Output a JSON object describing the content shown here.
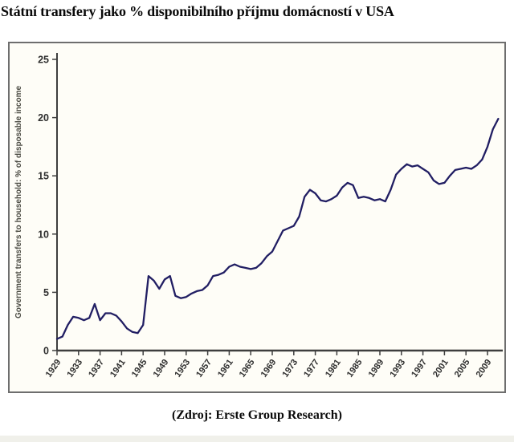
{
  "title": "Státní transfery jako % disponibilního příjmu domácností v USA",
  "source": {
    "label": "(Zdroj: Erste Group Research)"
  },
  "colors": {
    "line": "#211e63",
    "axis": "#3e3e3e",
    "panel_border": "#6e6e6e",
    "panel_bg": "#fefdf7",
    "tick_text": "#2e2e2e",
    "axis_title_text": "#4c4c44"
  },
  "chart_data": {
    "type": "line",
    "title": "Státní transfery jako % disponibilního příjmu domácností v USA",
    "xlabel": "",
    "ylabel": "Government transfers to household: % of disposable income",
    "ylim": [
      0,
      25
    ],
    "yticks": [
      0,
      5,
      10,
      15,
      20,
      25
    ],
    "xticks": [
      1929,
      1933,
      1937,
      1941,
      1945,
      1949,
      1953,
      1957,
      1961,
      1965,
      1969,
      1973,
      1977,
      1981,
      1985,
      1989,
      1993,
      1997,
      2001,
      2005,
      2009
    ],
    "grid": false,
    "legend": "none",
    "x": [
      1929,
      1930,
      1931,
      1932,
      1933,
      1934,
      1935,
      1936,
      1937,
      1938,
      1939,
      1940,
      1941,
      1942,
      1943,
      1944,
      1945,
      1946,
      1947,
      1948,
      1949,
      1950,
      1951,
      1952,
      1953,
      1954,
      1955,
      1956,
      1957,
      1958,
      1959,
      1960,
      1961,
      1962,
      1963,
      1964,
      1965,
      1966,
      1967,
      1968,
      1969,
      1970,
      1971,
      1972,
      1973,
      1974,
      1975,
      1976,
      1977,
      1978,
      1979,
      1980,
      1981,
      1982,
      1983,
      1984,
      1985,
      1986,
      1987,
      1988,
      1989,
      1990,
      1991,
      1992,
      1993,
      1994,
      1995,
      1996,
      1997,
      1998,
      1999,
      2000,
      2001,
      2002,
      2003,
      2004,
      2005,
      2006,
      2007,
      2008,
      2009,
      2010,
      2011
    ],
    "values": [
      1.0,
      1.2,
      2.2,
      2.9,
      2.8,
      2.6,
      2.8,
      4.0,
      2.6,
      3.2,
      3.2,
      3.0,
      2.5,
      1.9,
      1.6,
      1.5,
      2.2,
      6.4,
      6.0,
      5.3,
      6.1,
      6.4,
      4.7,
      4.5,
      4.6,
      4.9,
      5.1,
      5.2,
      5.6,
      6.4,
      6.5,
      6.7,
      7.2,
      7.4,
      7.2,
      7.1,
      7.0,
      7.1,
      7.5,
      8.1,
      8.5,
      9.4,
      10.3,
      10.5,
      10.7,
      11.5,
      13.2,
      13.8,
      13.5,
      12.9,
      12.8,
      13.0,
      13.3,
      14.0,
      14.4,
      14.2,
      13.1,
      13.2,
      13.1,
      12.9,
      13.0,
      12.8,
      13.8,
      15.1,
      15.6,
      16.0,
      15.8,
      15.9,
      15.6,
      15.3,
      14.6,
      14.3,
      14.4,
      15.0,
      15.5,
      15.6,
      15.7,
      15.6,
      15.9,
      16.4,
      17.5,
      19.0,
      19.9
    ]
  }
}
